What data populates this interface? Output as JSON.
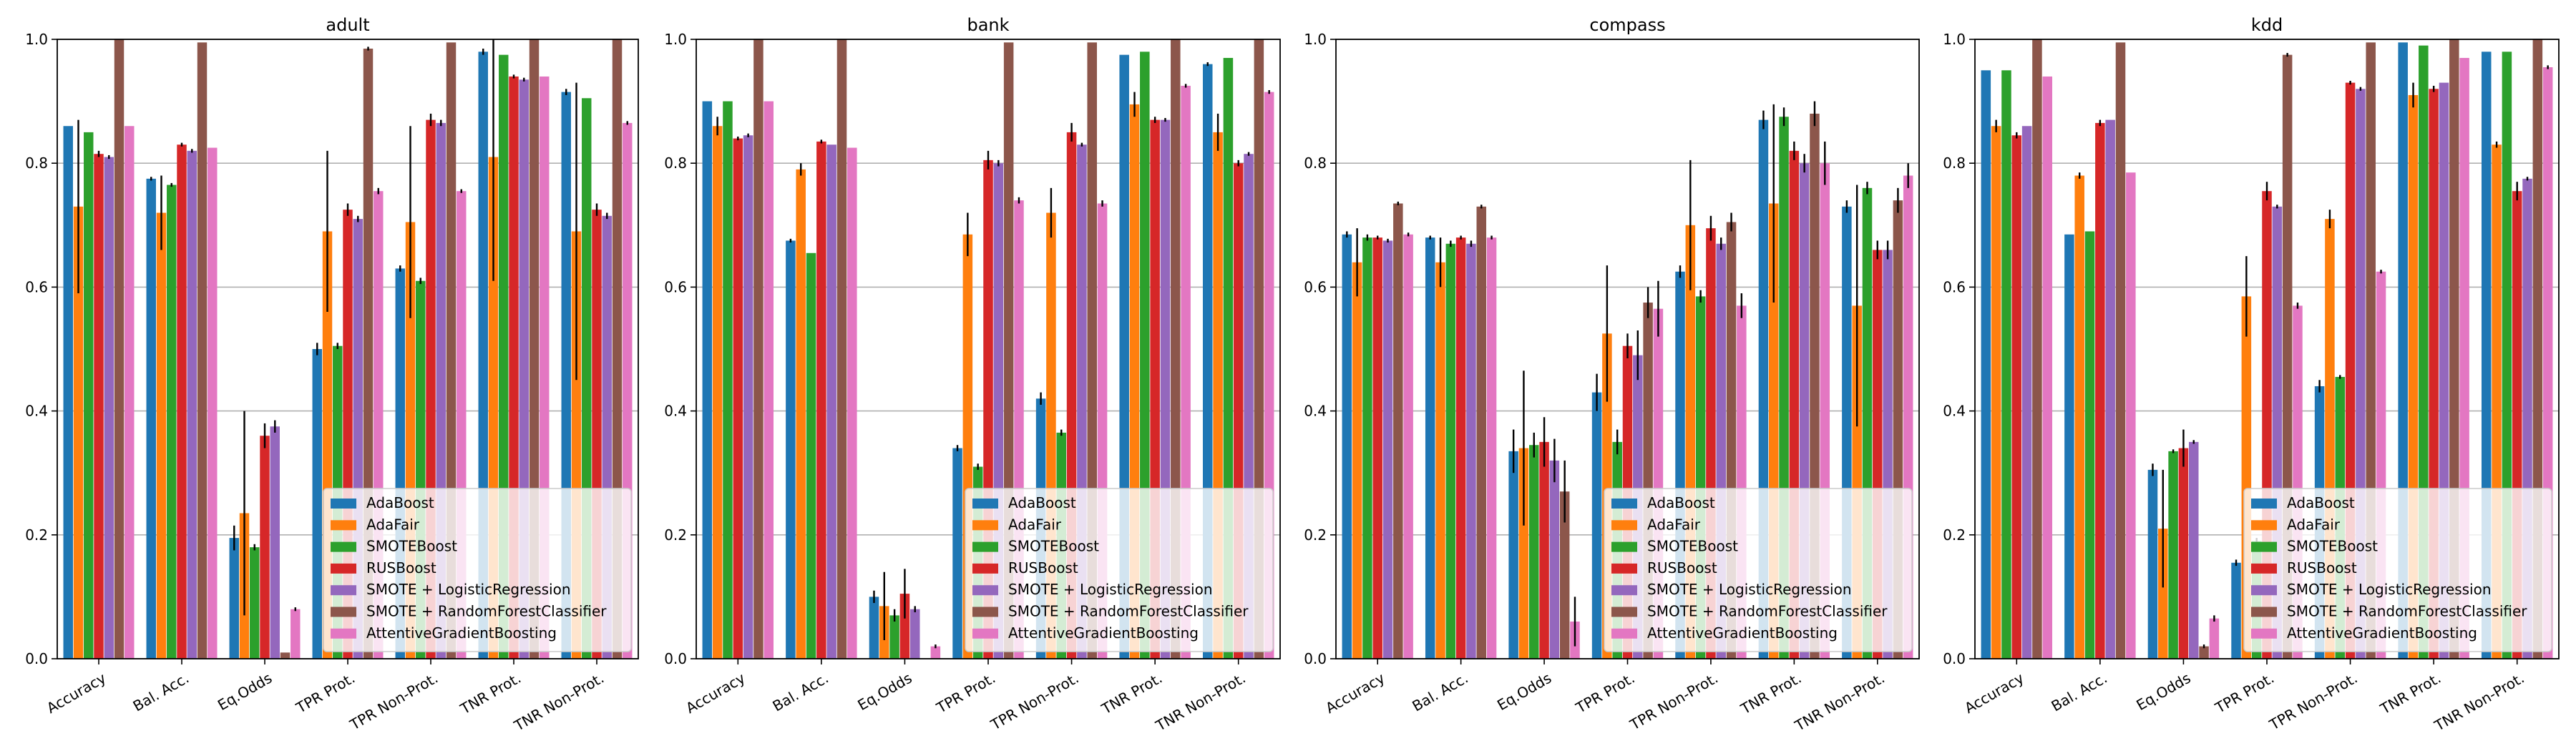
{
  "series_names": [
    "AdaBoost",
    "AdaFair",
    "SMOTEBoost",
    "RUSBoost",
    "SMOTE + LogisticRegression",
    "SMOTE + RandomForestClassifier",
    "AttentiveGradientBoosting"
  ],
  "series_colors": [
    "#1f77b4",
    "#ff7f0e",
    "#2ca02c",
    "#d62728",
    "#9467bd",
    "#8c564b",
    "#e377c2"
  ],
  "chart_data": [
    {
      "type": "bar",
      "title": "adult",
      "categories": [
        "Accuracy",
        "Bal. Acc.",
        "Eq.Odds",
        "TPR Prot.",
        "TPR Non-Prot.",
        "TNR Prot.",
        "TNR Non-Prot."
      ],
      "ylim": [
        0,
        1.0
      ],
      "yticks": [
        "0.0",
        "0.2",
        "0.4",
        "0.6",
        "0.8",
        "1.0"
      ],
      "grid": "y",
      "legend_position": "lower-right",
      "series": [
        {
          "name": "AdaBoost",
          "values": [
            0.86,
            0.775,
            0.195,
            0.5,
            0.63,
            0.98,
            0.915
          ],
          "errors": [
            0.0,
            0.003,
            0.02,
            0.01,
            0.005,
            0.005,
            0.005
          ]
        },
        {
          "name": "AdaFair",
          "values": [
            0.73,
            0.72,
            0.235,
            0.69,
            0.705,
            0.81,
            0.69
          ],
          "errors": [
            0.14,
            0.06,
            0.165,
            0.13,
            0.155,
            0.2,
            0.24
          ]
        },
        {
          "name": "SMOTEBoost",
          "values": [
            0.85,
            0.765,
            0.18,
            0.505,
            0.61,
            0.975,
            0.905
          ],
          "errors": [
            0.0,
            0.003,
            0.005,
            0.005,
            0.005,
            0.0,
            0.0
          ]
        },
        {
          "name": "RUSBoost",
          "values": [
            0.815,
            0.83,
            0.36,
            0.725,
            0.87,
            0.94,
            0.725
          ],
          "errors": [
            0.005,
            0.003,
            0.02,
            0.01,
            0.01,
            0.003,
            0.01
          ]
        },
        {
          "name": "SMOTE + LogisticRegression",
          "values": [
            0.81,
            0.82,
            0.375,
            0.71,
            0.865,
            0.935,
            0.715
          ],
          "errors": [
            0.003,
            0.003,
            0.01,
            0.005,
            0.005,
            0.003,
            0.005
          ]
        },
        {
          "name": "SMOTE + RandomForestClassifier",
          "values": [
            1.0,
            0.995,
            0.01,
            0.985,
            0.995,
            1.0,
            1.0
          ],
          "errors": [
            0.0,
            0.0,
            0.0,
            0.003,
            0.0,
            0.0,
            0.0
          ]
        },
        {
          "name": "AttentiveGradientBoosting",
          "values": [
            0.86,
            0.825,
            0.08,
            0.755,
            0.755,
            0.94,
            0.865
          ],
          "errors": [
            0.0,
            0.0,
            0.003,
            0.005,
            0.003,
            0.0,
            0.003
          ]
        }
      ]
    },
    {
      "type": "bar",
      "title": "bank",
      "categories": [
        "Accuracy",
        "Bal. Acc.",
        "Eq.Odds",
        "TPR Prot.",
        "TPR Non-Prot.",
        "TNR Prot.",
        "TNR Non-Prot."
      ],
      "ylim": [
        0,
        1.0
      ],
      "yticks": [
        "0.0",
        "0.2",
        "0.4",
        "0.6",
        "0.8",
        "1.0"
      ],
      "grid": "y",
      "legend_position": "lower-right",
      "series": [
        {
          "name": "AdaBoost",
          "values": [
            0.9,
            0.675,
            0.1,
            0.34,
            0.42,
            0.975,
            0.96
          ],
          "errors": [
            0.0,
            0.003,
            0.01,
            0.005,
            0.01,
            0.0,
            0.003
          ]
        },
        {
          "name": "AdaFair",
          "values": [
            0.86,
            0.79,
            0.085,
            0.685,
            0.72,
            0.895,
            0.85
          ],
          "errors": [
            0.015,
            0.01,
            0.055,
            0.035,
            0.04,
            0.02,
            0.03
          ]
        },
        {
          "name": "SMOTEBoost",
          "values": [
            0.9,
            0.655,
            0.07,
            0.31,
            0.365,
            0.98,
            0.97
          ],
          "errors": [
            0.0,
            0.0,
            0.01,
            0.005,
            0.005,
            0.0,
            0.0
          ]
        },
        {
          "name": "RUSBoost",
          "values": [
            0.84,
            0.835,
            0.105,
            0.805,
            0.85,
            0.87,
            0.8
          ],
          "errors": [
            0.003,
            0.003,
            0.04,
            0.015,
            0.015,
            0.005,
            0.005
          ]
        },
        {
          "name": "SMOTE + LogisticRegression",
          "values": [
            0.845,
            0.83,
            0.08,
            0.8,
            0.83,
            0.87,
            0.815
          ],
          "errors": [
            0.003,
            0.0,
            0.005,
            0.005,
            0.003,
            0.003,
            0.003
          ]
        },
        {
          "name": "SMOTE + RandomForestClassifier",
          "values": [
            1.0,
            1.0,
            0.0,
            0.995,
            0.995,
            1.0,
            1.0
          ],
          "errors": [
            0.0,
            0.0,
            0.0,
            0.0,
            0.0,
            0.0,
            0.0
          ]
        },
        {
          "name": "AttentiveGradientBoosting",
          "values": [
            0.9,
            0.825,
            0.02,
            0.74,
            0.735,
            0.925,
            0.915
          ],
          "errors": [
            0.0,
            0.0,
            0.003,
            0.005,
            0.005,
            0.003,
            0.003
          ]
        }
      ]
    },
    {
      "type": "bar",
      "title": "compass",
      "categories": [
        "Accuracy",
        "Bal. Acc.",
        "Eq.Odds",
        "TPR Prot.",
        "TPR Non-Prot.",
        "TNR Prot.",
        "TNR Non-Prot."
      ],
      "ylim": [
        0,
        1.0
      ],
      "yticks": [
        "0.0",
        "0.2",
        "0.4",
        "0.6",
        "0.8",
        "1.0"
      ],
      "grid": "y",
      "legend_position": "lower-right",
      "series": [
        {
          "name": "AdaBoost",
          "values": [
            0.685,
            0.68,
            0.335,
            0.43,
            0.625,
            0.87,
            0.73
          ],
          "errors": [
            0.005,
            0.003,
            0.035,
            0.03,
            0.01,
            0.015,
            0.01
          ]
        },
        {
          "name": "AdaFair",
          "values": [
            0.64,
            0.64,
            0.34,
            0.525,
            0.7,
            0.735,
            0.57
          ],
          "errors": [
            0.055,
            0.04,
            0.125,
            0.11,
            0.105,
            0.16,
            0.195
          ]
        },
        {
          "name": "SMOTEBoost",
          "values": [
            0.68,
            0.67,
            0.345,
            0.35,
            0.585,
            0.875,
            0.76
          ],
          "errors": [
            0.005,
            0.005,
            0.02,
            0.02,
            0.01,
            0.015,
            0.01
          ]
        },
        {
          "name": "RUSBoost",
          "values": [
            0.68,
            0.68,
            0.35,
            0.505,
            0.695,
            0.82,
            0.66
          ],
          "errors": [
            0.003,
            0.003,
            0.04,
            0.02,
            0.02,
            0.015,
            0.015
          ]
        },
        {
          "name": "SMOTE + LogisticRegression",
          "values": [
            0.675,
            0.67,
            0.32,
            0.49,
            0.67,
            0.8,
            0.66
          ],
          "errors": [
            0.003,
            0.005,
            0.035,
            0.04,
            0.01,
            0.015,
            0.015
          ]
        },
        {
          "name": "SMOTE + RandomForestClassifier",
          "values": [
            0.735,
            0.73,
            0.27,
            0.575,
            0.705,
            0.88,
            0.74
          ],
          "errors": [
            0.003,
            0.003,
            0.05,
            0.025,
            0.015,
            0.02,
            0.02
          ]
        },
        {
          "name": "AttentiveGradientBoosting",
          "values": [
            0.685,
            0.68,
            0.06,
            0.565,
            0.57,
            0.8,
            0.78
          ],
          "errors": [
            0.003,
            0.003,
            0.04,
            0.045,
            0.02,
            0.035,
            0.02
          ]
        }
      ]
    },
    {
      "type": "bar",
      "title": "kdd",
      "categories": [
        "Accuracy",
        "Bal. Acc.",
        "Eq.Odds",
        "TPR Prot.",
        "TPR Non-Prot.",
        "TNR Prot.",
        "TNR Non-Prot."
      ],
      "ylim": [
        0,
        1.0
      ],
      "yticks": [
        "0.0",
        "0.2",
        "0.4",
        "0.6",
        "0.8",
        "1.0"
      ],
      "grid": "y",
      "legend_position": "lower-right",
      "series": [
        {
          "name": "AdaBoost",
          "values": [
            0.95,
            0.685,
            0.305,
            0.155,
            0.44,
            0.995,
            0.98
          ],
          "errors": [
            0.0,
            0.0,
            0.01,
            0.005,
            0.01,
            0.0,
            0.0
          ]
        },
        {
          "name": "AdaFair",
          "values": [
            0.86,
            0.78,
            0.21,
            0.585,
            0.71,
            0.91,
            0.83
          ],
          "errors": [
            0.01,
            0.005,
            0.095,
            0.065,
            0.015,
            0.02,
            0.005
          ]
        },
        {
          "name": "SMOTEBoost",
          "values": [
            0.95,
            0.69,
            0.335,
            0.19,
            0.455,
            0.99,
            0.98
          ],
          "errors": [
            0.0,
            0.0,
            0.003,
            0.005,
            0.003,
            0.0,
            0.0
          ]
        },
        {
          "name": "RUSBoost",
          "values": [
            0.845,
            0.865,
            0.34,
            0.755,
            0.93,
            0.92,
            0.755
          ],
          "errors": [
            0.005,
            0.005,
            0.03,
            0.015,
            0.003,
            0.005,
            0.015
          ]
        },
        {
          "name": "SMOTE + LogisticRegression",
          "values": [
            0.86,
            0.87,
            0.35,
            0.73,
            0.92,
            0.93,
            0.775
          ],
          "errors": [
            0.0,
            0.0,
            0.003,
            0.003,
            0.003,
            0.0,
            0.003
          ]
        },
        {
          "name": "SMOTE + RandomForestClassifier",
          "values": [
            1.0,
            0.995,
            0.02,
            0.975,
            0.995,
            1.0,
            1.0
          ],
          "errors": [
            0.0,
            0.0,
            0.003,
            0.003,
            0.0,
            0.0,
            0.0
          ]
        },
        {
          "name": "AttentiveGradientBoosting",
          "values": [
            0.94,
            0.785,
            0.065,
            0.57,
            0.625,
            0.97,
            0.955
          ],
          "errors": [
            0.0,
            0.0,
            0.005,
            0.005,
            0.003,
            0.0,
            0.003
          ]
        }
      ]
    }
  ]
}
